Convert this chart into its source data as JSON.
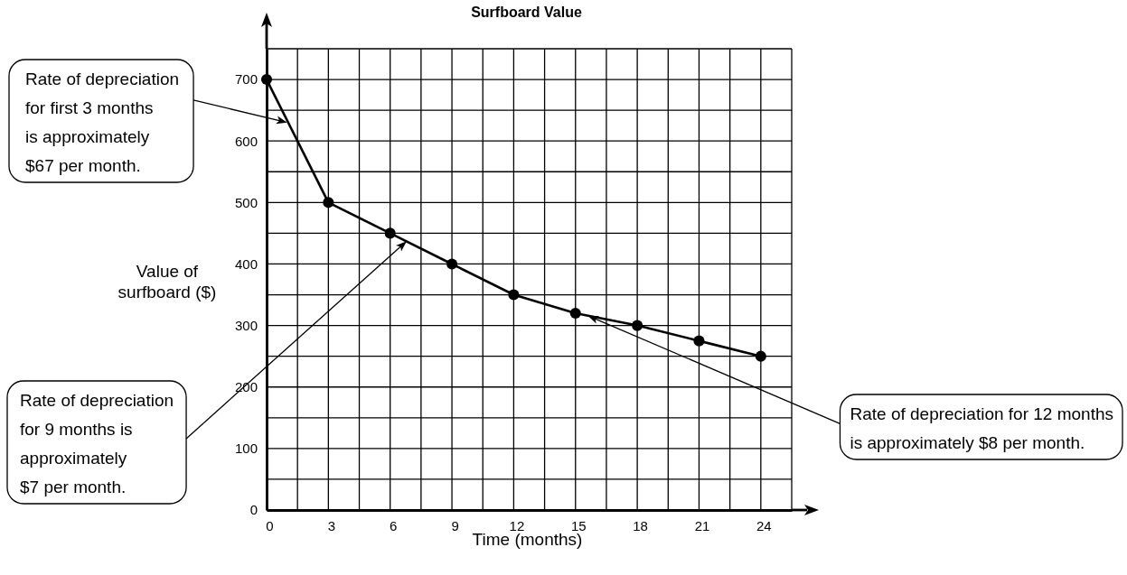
{
  "chart_data": {
    "type": "line",
    "title": "Surfboard Value",
    "xlabel": "Time (months)",
    "ylabel": "Value of surfboard ($)",
    "x": [
      0,
      3,
      6,
      9,
      12,
      15,
      18,
      21,
      24
    ],
    "series": [
      {
        "color": "#000000",
        "values": [
          700,
          500,
          450,
          400,
          350,
          320,
          300,
          275,
          250
        ]
      }
    ],
    "xlim": [
      0,
      25.5
    ],
    "ylim": [
      0,
      750
    ],
    "xticks": [
      0,
      3,
      6,
      9,
      12,
      15,
      18,
      21,
      24
    ],
    "yticks": [
      0,
      100,
      200,
      300,
      400,
      500,
      600,
      700
    ],
    "grid": true,
    "marker": "circle",
    "line_style": "solid",
    "annotations": [
      {
        "text": "Rate of depreciation for first 3 months is approximately $67 per month.",
        "x": 1,
        "y": 630
      },
      {
        "text": "Rate of depreciation for 9 months is approximately $7 per month.",
        "x": 6.8,
        "y": 437
      },
      {
        "text": "Rate of depreciation for 12 months is approximately $8 per month.",
        "x": 15.6,
        "y": 316
      }
    ]
  }
}
